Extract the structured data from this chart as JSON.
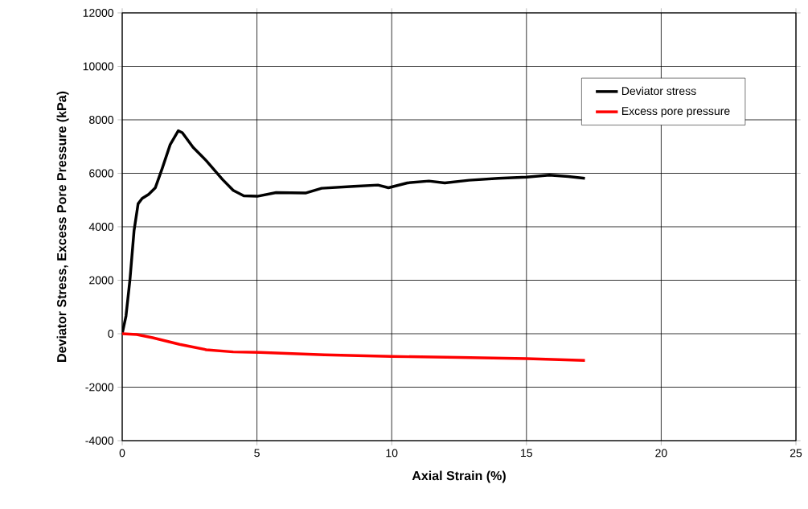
{
  "chart_data": {
    "type": "line",
    "xlabel": "Axial Strain (%)",
    "ylabel": "Deviator Stress, Excess Pore Pressure (kPa)",
    "xlim": [
      0,
      25
    ],
    "xticks": [
      0,
      5,
      10,
      15,
      20,
      25
    ],
    "ylim": [
      -4000,
      12000
    ],
    "yticks": [
      -4000,
      -2000,
      0,
      2000,
      4000,
      6000,
      8000,
      10000,
      12000
    ],
    "grid": true,
    "legend": "top right",
    "marker": "none",
    "line_style": "solid",
    "series": [
      {
        "name": "Deviator stress",
        "color": "#000000",
        "x": [
          0,
          0.14,
          0.29,
          0.44,
          0.59,
          0.74,
          0.98,
          1.23,
          1.48,
          1.78,
          2.08,
          2.23,
          2.63,
          3.12,
          3.72,
          4.12,
          4.51,
          5.01,
          5.71,
          6.8,
          7.4,
          8.59,
          9.49,
          9.88,
          10.58,
          11.38,
          11.97,
          12.87,
          13.96,
          15.01,
          15.85,
          16.55,
          17.17
        ],
        "values": [
          0,
          660,
          2050,
          3860,
          4860,
          5060,
          5210,
          5460,
          6170,
          7070,
          7590,
          7520,
          6970,
          6470,
          5770,
          5360,
          5160,
          5140,
          5280,
          5260,
          5440,
          5510,
          5560,
          5460,
          5640,
          5710,
          5640,
          5740,
          5810,
          5860,
          5930,
          5880,
          5810
        ]
      },
      {
        "name": "Excess pore pressure",
        "color": "#ff0000",
        "x": [
          0,
          0.54,
          1.13,
          2.13,
          3.12,
          4.12,
          5.11,
          7.5,
          9.98,
          12.5,
          15.01,
          17.17
        ],
        "values": [
          0,
          -30,
          -150,
          -400,
          -600,
          -680,
          -700,
          -790,
          -850,
          -890,
          -930,
          -1000
        ]
      }
    ]
  }
}
